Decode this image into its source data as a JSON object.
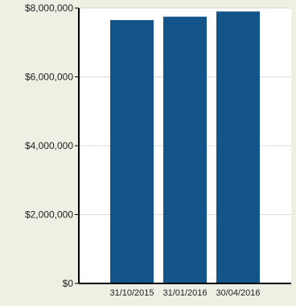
{
  "colors": {
    "page_background": "#eef0e4",
    "plot_background": "#ffffff",
    "bar": "#13558a",
    "grid": "#d9d9d9",
    "axis": "#000000"
  },
  "chart_data": {
    "type": "bar",
    "title": "",
    "xlabel": "",
    "ylabel": "",
    "categories": [
      "31/10/2015",
      "31/01/2016",
      "30/04/2016"
    ],
    "values": [
      7650000,
      7750000,
      7900000
    ],
    "ylim": [
      0,
      8000000
    ],
    "y_ticks": [
      0,
      2000000,
      4000000,
      6000000,
      8000000
    ],
    "y_tick_labels": [
      "$0",
      "$2,000,000",
      "$4,000,000",
      "$6,000,000",
      "$8,000,000"
    ],
    "grid": true,
    "legend": "none"
  }
}
